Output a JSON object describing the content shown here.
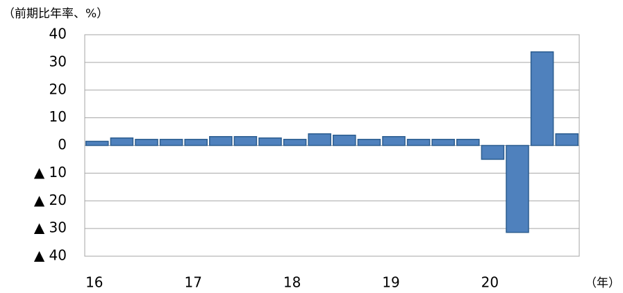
{
  "chart_data": {
    "type": "bar",
    "y_label": "（前期比年率、%）",
    "x_label": "（年）",
    "categories": [
      "16",
      null,
      null,
      null,
      "17",
      null,
      null,
      null,
      "18",
      null,
      null,
      null,
      "19",
      null,
      null,
      null,
      "20",
      null,
      null,
      null
    ],
    "values": [
      1.5,
      2.7,
      2.2,
      2.2,
      2.2,
      3.2,
      3.2,
      2.7,
      2.2,
      4.2,
      3.7,
      2.2,
      3.2,
      2.2,
      2.2,
      2.2,
      -5.0,
      -31.4,
      33.8,
      4.2
    ],
    "color": "#4f81bd",
    "ylim": [
      -40,
      40
    ],
    "yticks": [
      {
        "value": -40,
        "label": "▲ 40"
      },
      {
        "value": -30,
        "label": "▲ 30"
      },
      {
        "value": -20,
        "label": "▲ 20"
      },
      {
        "value": -10,
        "label": "▲ 10"
      },
      0,
      10,
      20,
      30,
      40
    ],
    "grid": true
  }
}
